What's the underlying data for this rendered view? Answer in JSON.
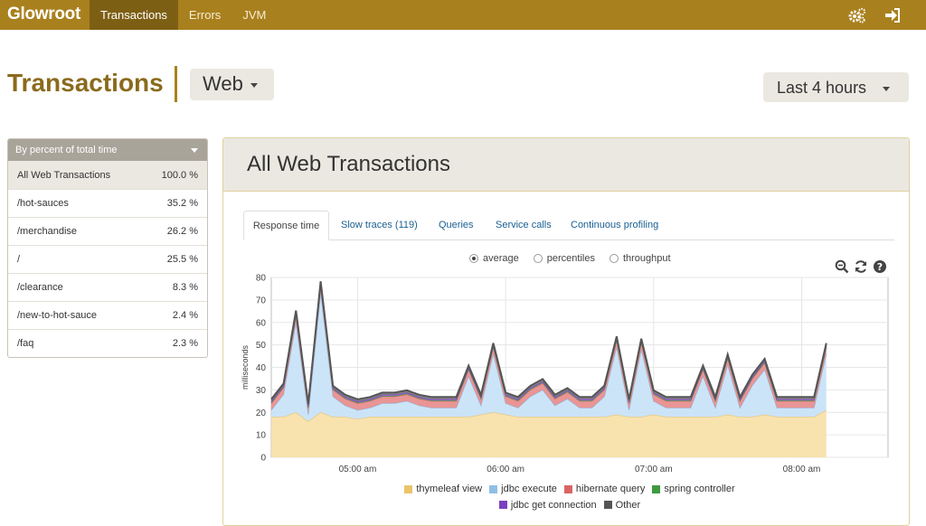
{
  "navbar": {
    "brand": "Glowroot",
    "items": [
      {
        "label": "Transactions",
        "active": true
      },
      {
        "label": "Errors",
        "active": false
      },
      {
        "label": "JVM",
        "active": false
      }
    ],
    "icons": [
      "gears-icon",
      "sign-out-icon"
    ],
    "background": "#a9801e"
  },
  "header": {
    "title": "Transactions",
    "type_selected": "Web",
    "time_range_selected": "Last 4 hours"
  },
  "sidebar": {
    "sort_label": "By percent of total time",
    "rows": [
      {
        "name": "All Web Transactions",
        "percent": "100.0 %"
      },
      {
        "name": "/hot-sauces",
        "percent": "35.2 %"
      },
      {
        "name": "/merchandise",
        "percent": "26.2 %"
      },
      {
        "name": "/",
        "percent": "25.5 %"
      },
      {
        "name": "/clearance",
        "percent": "8.3 %"
      },
      {
        "name": "/new-to-hot-sauce",
        "percent": "2.4 %"
      },
      {
        "name": "/faq",
        "percent": "2.3 %"
      }
    ]
  },
  "panel": {
    "title": "All Web Transactions",
    "tabs": [
      {
        "label": "Response time",
        "active": true
      },
      {
        "label": "Slow traces (119)",
        "active": false
      },
      {
        "label": "Queries",
        "active": false
      },
      {
        "label": "Service calls",
        "active": false
      },
      {
        "label": "Continuous profiling",
        "active": false
      }
    ],
    "view_options": [
      {
        "label": "average",
        "checked": true
      },
      {
        "label": "percentiles",
        "checked": false
      },
      {
        "label": "throughput",
        "checked": false
      }
    ],
    "chart_tools": [
      "zoom-out-icon",
      "refresh-icon",
      "help-icon"
    ]
  },
  "chart_data": {
    "type": "area",
    "ylabel": "milliseconds",
    "ylim": [
      0,
      80
    ],
    "yticks": [
      0,
      10,
      20,
      30,
      40,
      50,
      60,
      70,
      80
    ],
    "xlim": [
      "04:25",
      "08:35"
    ],
    "xticks": [
      "05:00 am",
      "06:00 am",
      "07:00 am",
      "08:00 am"
    ],
    "grid": true,
    "legend_position": "bottom",
    "x": [
      "04:25",
      "04:30",
      "04:35",
      "04:40",
      "04:45",
      "04:50",
      "04:55",
      "05:00",
      "05:05",
      "05:10",
      "05:15",
      "05:20",
      "05:25",
      "05:30",
      "05:35",
      "05:40",
      "05:45",
      "05:50",
      "05:55",
      "06:00",
      "06:05",
      "06:10",
      "06:15",
      "06:20",
      "06:25",
      "06:30",
      "06:35",
      "06:40",
      "06:45",
      "06:50",
      "06:55",
      "07:00",
      "07:05",
      "07:10",
      "07:15",
      "07:20",
      "07:25",
      "07:30",
      "07:35",
      "07:40",
      "07:45",
      "07:50",
      "07:55",
      "08:00",
      "08:05",
      "08:10"
    ],
    "series": [
      {
        "name": "thymeleaf view",
        "color": "#f7dfa5",
        "edge": "#eac46b",
        "values": [
          18,
          18,
          20,
          16,
          20,
          18,
          18,
          17,
          18,
          18,
          18,
          18,
          18,
          18,
          18,
          18,
          18,
          19,
          20,
          19,
          18,
          18,
          18,
          18,
          18,
          18,
          18,
          18,
          19,
          18,
          18,
          19,
          18,
          18,
          18,
          18,
          18,
          19,
          18,
          18,
          19,
          18,
          18,
          18,
          18,
          21
        ]
      },
      {
        "name": "jdbc execute",
        "color": "#c7e1f7",
        "edge": "#8fbfe6",
        "values": [
          3,
          10,
          40,
          3,
          53,
          9,
          5,
          4,
          4,
          6,
          6,
          7,
          5,
          4,
          4,
          4,
          18,
          4,
          26,
          5,
          4,
          9,
          12,
          5,
          8,
          4,
          4,
          9,
          30,
          3,
          30,
          6,
          4,
          4,
          4,
          18,
          4,
          22,
          4,
          14,
          20,
          4,
          4,
          4,
          4,
          25
        ]
      },
      {
        "name": "hibernate query",
        "color": "#e78a8a",
        "edge": "#d96464",
        "values": [
          3,
          3,
          3,
          3,
          3,
          3,
          3,
          3,
          3,
          3,
          3,
          3,
          3,
          3,
          3,
          3,
          3,
          3,
          3,
          3,
          3,
          3,
          3,
          3,
          3,
          3,
          3,
          3,
          3,
          3,
          3,
          3,
          3,
          3,
          3,
          3,
          3,
          3,
          3,
          3,
          3,
          3,
          3,
          3,
          3,
          3
        ]
      },
      {
        "name": "spring controller",
        "color": "#5fb65f",
        "edge": "#3f9a3f",
        "values": [
          0.3,
          0.3,
          0.3,
          0.3,
          0.3,
          0.3,
          0.3,
          0.3,
          0.3,
          0.3,
          0.3,
          0.3,
          0.3,
          0.3,
          0.3,
          0.3,
          0.3,
          0.3,
          0.3,
          0.3,
          0.3,
          0.3,
          0.3,
          0.3,
          0.3,
          0.3,
          0.3,
          0.3,
          0.3,
          0.3,
          0.3,
          0.3,
          0.3,
          0.3,
          0.3,
          0.3,
          0.3,
          0.3,
          0.3,
          0.3,
          0.3,
          0.3,
          0.3,
          0.3,
          0.3,
          0.3
        ]
      },
      {
        "name": "jdbc get connection",
        "color": "#9a63d6",
        "edge": "#7a40c0",
        "values": [
          0.5,
          0.5,
          0.5,
          0.5,
          0.5,
          0.5,
          0.5,
          0.5,
          0.5,
          0.5,
          0.5,
          0.5,
          0.5,
          0.5,
          0.5,
          0.5,
          0.5,
          0.5,
          0.5,
          0.5,
          0.5,
          0.5,
          0.5,
          0.5,
          0.5,
          0.5,
          0.5,
          0.5,
          0.5,
          0.5,
          0.5,
          0.5,
          0.5,
          0.5,
          0.5,
          0.5,
          0.5,
          0.5,
          0.5,
          0.5,
          0.5,
          0.5,
          0.5,
          0.5,
          0.5,
          0.5
        ]
      },
      {
        "name": "Other",
        "color": "#7a7a7a",
        "edge": "#555555",
        "values": [
          1,
          1,
          1.5,
          1,
          1.5,
          1,
          1,
          1,
          1,
          1,
          1,
          1,
          1,
          1,
          1,
          1,
          1,
          1,
          1,
          1,
          1,
          1,
          1,
          1,
          1,
          1,
          1,
          1,
          1,
          1,
          1,
          1,
          1,
          1,
          1,
          1,
          1,
          1,
          1,
          1,
          1,
          1,
          1,
          1,
          1,
          1
        ]
      }
    ]
  }
}
